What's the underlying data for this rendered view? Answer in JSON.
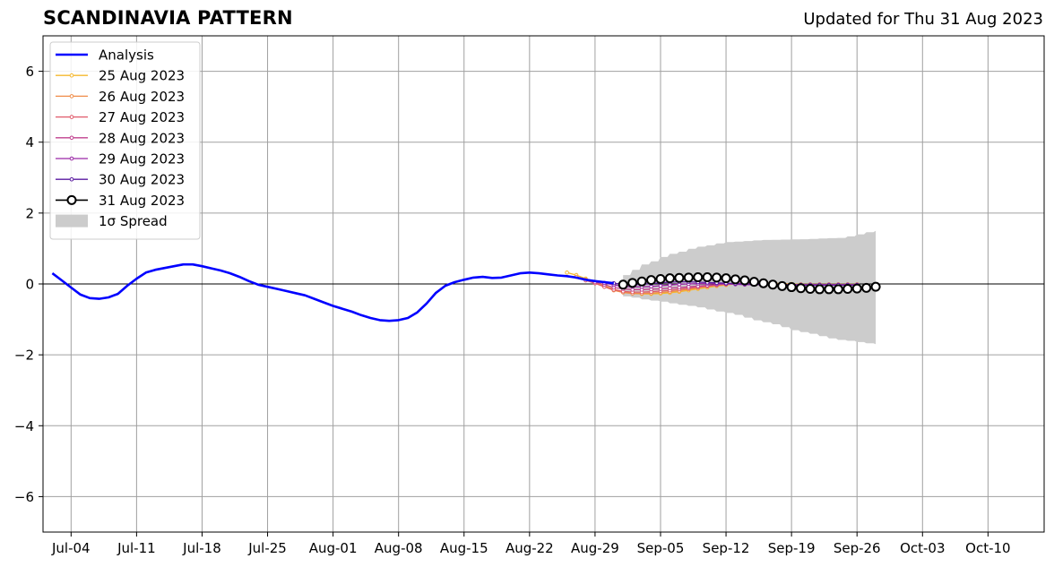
{
  "title": "SCANDINAVIA PATTERN",
  "subtitle": "Updated for Thu 31 Aug 2023",
  "chart_data": {
    "type": "line",
    "xlabel": "",
    "ylabel": "",
    "ylim": [
      -7,
      7
    ],
    "xlim": [
      "2023-07-01",
      "2023-10-16"
    ],
    "grid": true,
    "legend_position": "top-left",
    "x_ticks": [
      "Jul-04",
      "Jul-11",
      "Jul-18",
      "Jul-25",
      "Aug-01",
      "Aug-08",
      "Aug-15",
      "Aug-22",
      "Aug-29",
      "Sep-05",
      "Sep-12",
      "Sep-19",
      "Sep-26",
      "Oct-03",
      "Oct-10"
    ],
    "x_tick_dates": [
      "2023-07-04",
      "2023-07-11",
      "2023-07-18",
      "2023-07-25",
      "2023-08-01",
      "2023-08-08",
      "2023-08-15",
      "2023-08-22",
      "2023-08-29",
      "2023-09-05",
      "2023-09-12",
      "2023-09-19",
      "2023-09-26",
      "2023-10-03",
      "2023-10-10"
    ],
    "y_ticks": [
      "6",
      "4",
      "2",
      "0",
      "−2",
      "−4",
      "−6"
    ],
    "y_tick_values": [
      6,
      4,
      2,
      0,
      -2,
      -4,
      -6
    ],
    "analysis": {
      "name": "Analysis",
      "color": "#0000ff",
      "points": [
        [
          "2023-07-02",
          0.3
        ],
        [
          "2023-07-03",
          0.1
        ],
        [
          "2023-07-04",
          -0.1
        ],
        [
          "2023-07-05",
          -0.3
        ],
        [
          "2023-07-06",
          -0.4
        ],
        [
          "2023-07-07",
          -0.42
        ],
        [
          "2023-07-08",
          -0.38
        ],
        [
          "2023-07-09",
          -0.28
        ],
        [
          "2023-07-10",
          -0.05
        ],
        [
          "2023-07-11",
          0.15
        ],
        [
          "2023-07-12",
          0.32
        ],
        [
          "2023-07-13",
          0.4
        ],
        [
          "2023-07-14",
          0.45
        ],
        [
          "2023-07-15",
          0.5
        ],
        [
          "2023-07-16",
          0.55
        ],
        [
          "2023-07-17",
          0.55
        ],
        [
          "2023-07-18",
          0.5
        ],
        [
          "2023-07-19",
          0.44
        ],
        [
          "2023-07-20",
          0.38
        ],
        [
          "2023-07-21",
          0.3
        ],
        [
          "2023-07-22",
          0.2
        ],
        [
          "2023-07-23",
          0.08
        ],
        [
          "2023-07-24",
          -0.02
        ],
        [
          "2023-07-25",
          -0.08
        ],
        [
          "2023-07-26",
          -0.14
        ],
        [
          "2023-07-27",
          -0.2
        ],
        [
          "2023-07-28",
          -0.26
        ],
        [
          "2023-07-29",
          -0.32
        ],
        [
          "2023-07-30",
          -0.42
        ],
        [
          "2023-07-31",
          -0.52
        ],
        [
          "2023-08-01",
          -0.62
        ],
        [
          "2023-08-02",
          -0.7
        ],
        [
          "2023-08-03",
          -0.78
        ],
        [
          "2023-08-04",
          -0.88
        ],
        [
          "2023-08-05",
          -0.96
        ],
        [
          "2023-08-06",
          -1.02
        ],
        [
          "2023-08-07",
          -1.04
        ],
        [
          "2023-08-08",
          -1.02
        ],
        [
          "2023-08-09",
          -0.96
        ],
        [
          "2023-08-10",
          -0.8
        ],
        [
          "2023-08-11",
          -0.55
        ],
        [
          "2023-08-12",
          -0.25
        ],
        [
          "2023-08-13",
          -0.05
        ],
        [
          "2023-08-14",
          0.05
        ],
        [
          "2023-08-15",
          0.12
        ],
        [
          "2023-08-16",
          0.18
        ],
        [
          "2023-08-17",
          0.2
        ],
        [
          "2023-08-18",
          0.17
        ],
        [
          "2023-08-19",
          0.18
        ],
        [
          "2023-08-20",
          0.24
        ],
        [
          "2023-08-21",
          0.3
        ],
        [
          "2023-08-22",
          0.32
        ],
        [
          "2023-08-23",
          0.3
        ],
        [
          "2023-08-24",
          0.27
        ],
        [
          "2023-08-25",
          0.24
        ],
        [
          "2023-08-26",
          0.22
        ],
        [
          "2023-08-27",
          0.18
        ],
        [
          "2023-08-28",
          0.12
        ],
        [
          "2023-08-29",
          0.08
        ],
        [
          "2023-08-30",
          0.05
        ],
        [
          "2023-08-31",
          0.02
        ]
      ]
    },
    "forecasts": [
      {
        "name": "25 Aug 2023",
        "color": "#f5b82e",
        "start": "2023-08-26",
        "values": [
          0.32,
          0.25,
          0.15,
          0.05,
          -0.05,
          -0.15,
          -0.22,
          -0.26,
          -0.28,
          -0.28,
          -0.27,
          -0.25,
          -0.22,
          -0.18,
          -0.14,
          -0.1,
          -0.06,
          -0.03,
          0.0,
          0.02,
          0.03,
          0.03,
          0.02,
          0.01,
          0.0,
          -0.01,
          -0.01,
          -0.01,
          -0.01,
          -0.01,
          -0.01,
          -0.01
        ]
      },
      {
        "name": "26 Aug 2023",
        "color": "#f08c48",
        "start": "2023-08-27",
        "values": [
          0.2,
          0.12,
          0.02,
          -0.08,
          -0.18,
          -0.24,
          -0.27,
          -0.27,
          -0.26,
          -0.24,
          -0.22,
          -0.19,
          -0.15,
          -0.11,
          -0.07,
          -0.04,
          -0.01,
          0.01,
          0.02,
          0.02,
          0.01,
          0.0,
          -0.01,
          -0.02,
          -0.02,
          -0.02,
          -0.02,
          -0.02,
          -0.02,
          -0.02,
          -0.02
        ]
      },
      {
        "name": "27 Aug 2023",
        "color": "#e05a6a",
        "start": "2023-08-28",
        "values": [
          0.1,
          0.02,
          -0.08,
          -0.16,
          -0.21,
          -0.23,
          -0.23,
          -0.22,
          -0.2,
          -0.18,
          -0.15,
          -0.12,
          -0.09,
          -0.06,
          -0.03,
          -0.01,
          0.01,
          0.02,
          0.02,
          0.01,
          0.0,
          -0.01,
          -0.02,
          -0.03,
          -0.03,
          -0.03,
          -0.03,
          -0.03,
          -0.03,
          -0.03
        ]
      },
      {
        "name": "28 Aug 2023",
        "color": "#c0408e",
        "start": "2023-08-29",
        "values": [
          0.05,
          -0.02,
          -0.1,
          -0.14,
          -0.16,
          -0.16,
          -0.15,
          -0.14,
          -0.12,
          -0.1,
          -0.08,
          -0.06,
          -0.04,
          -0.02,
          0.0,
          0.01,
          0.02,
          0.02,
          0.01,
          0.0,
          -0.01,
          -0.02,
          -0.03,
          -0.03,
          -0.03,
          -0.03,
          -0.03,
          -0.03,
          -0.03
        ]
      },
      {
        "name": "29 Aug 2023",
        "color": "#9a28a6",
        "start": "2023-08-30",
        "values": [
          0.03,
          -0.03,
          -0.07,
          -0.08,
          -0.08,
          -0.07,
          -0.05,
          -0.03,
          -0.01,
          0.0,
          0.01,
          0.01,
          0.01,
          0.0,
          -0.01,
          -0.02,
          -0.02,
          -0.02,
          -0.02,
          -0.02,
          -0.02,
          -0.02,
          -0.02,
          -0.02,
          -0.02,
          -0.02,
          -0.02,
          -0.02
        ]
      },
      {
        "name": "30 Aug 2023",
        "color": "#5a1aa0",
        "start": "2023-08-31",
        "values": [
          0.02,
          -0.01,
          -0.02,
          -0.01,
          0.01,
          0.03,
          0.05,
          0.06,
          0.06,
          0.05,
          0.04,
          0.03,
          0.02,
          0.01,
          0.0,
          -0.01,
          -0.02,
          -0.03,
          -0.03,
          -0.03,
          -0.03,
          -0.03,
          -0.03,
          -0.03,
          -0.03,
          -0.03,
          -0.03
        ]
      },
      {
        "name": "31 Aug 2023",
        "color": "#000000",
        "start": "2023-09-01",
        "values": [
          -0.02,
          0.03,
          0.07,
          0.11,
          0.14,
          0.16,
          0.17,
          0.18,
          0.19,
          0.19,
          0.18,
          0.16,
          0.13,
          0.1,
          0.06,
          0.02,
          -0.02,
          -0.06,
          -0.09,
          -0.12,
          -0.14,
          -0.15,
          -0.15,
          -0.15,
          -0.14,
          -0.13,
          -0.11,
          -0.08
        ]
      }
    ],
    "spread": {
      "name": "1σ Spread",
      "color": "#cccccc",
      "start": "2023-09-01",
      "end": "2023-09-28",
      "upper_key_points": [
        [
          "2023-09-01",
          0.25
        ],
        [
          "2023-09-03",
          0.55
        ],
        [
          "2023-09-06",
          0.85
        ],
        [
          "2023-09-09",
          1.05
        ],
        [
          "2023-09-12",
          1.18
        ],
        [
          "2023-09-16",
          1.24
        ],
        [
          "2023-09-20",
          1.26
        ],
        [
          "2023-09-24",
          1.3
        ],
        [
          "2023-09-28",
          1.5
        ]
      ],
      "lower_key_points": [
        [
          "2023-09-01",
          -0.35
        ],
        [
          "2023-09-04",
          -0.47
        ],
        [
          "2023-09-08",
          -0.62
        ],
        [
          "2023-09-12",
          -0.82
        ],
        [
          "2023-09-16",
          -1.08
        ],
        [
          "2023-09-20",
          -1.36
        ],
        [
          "2023-09-24",
          -1.58
        ],
        [
          "2023-09-28",
          -1.7
        ]
      ]
    }
  }
}
